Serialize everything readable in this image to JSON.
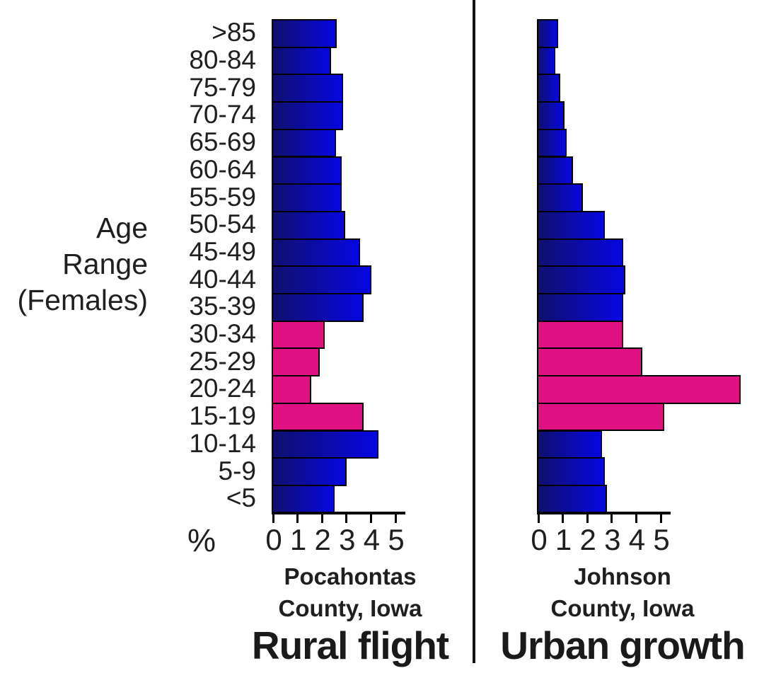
{
  "chart_data": {
    "type": "bar",
    "orientation": "horizontal",
    "title": "",
    "xlabel": "%",
    "ylabel": "Age Range (Females)",
    "ylabel_lines": [
      "Age",
      "Range",
      "(Females)"
    ],
    "categories": [
      ">85",
      "80-84",
      "75-79",
      "70-74",
      "65-69",
      "60-64",
      "55-59",
      "50-54",
      "45-49",
      "40-44",
      "35-39",
      "30-34",
      "25-29",
      "20-24",
      "15-19",
      "10-14",
      "5-9",
      "<5"
    ],
    "xticks": [
      "0",
      "1",
      "2",
      "3",
      "4",
      "5"
    ],
    "xlim": [
      0,
      5
    ],
    "grid": false,
    "legend": "none",
    "series": [
      {
        "name": "Pocahontas County, Iowa",
        "name_lines": [
          "Pocahontas",
          "County, Iowa"
        ],
        "caption": "Rural flight",
        "values": [
          2.55,
          2.3,
          2.8,
          2.8,
          2.5,
          2.75,
          2.75,
          2.9,
          3.5,
          3.95,
          3.65,
          2.05,
          1.85,
          1.5,
          3.65,
          4.25,
          2.95,
          2.45
        ]
      },
      {
        "name": "Johnson County, Iowa",
        "name_lines": [
          "Johnson",
          "County, Iowa"
        ],
        "caption": "Urban growth",
        "values": [
          0.75,
          0.65,
          0.85,
          1.0,
          1.1,
          1.35,
          1.75,
          2.65,
          3.4,
          3.5,
          3.4,
          3.4,
          4.2,
          8.2,
          5.1,
          2.55,
          2.65,
          2.75
        ]
      }
    ],
    "colors": {
      "blue_bar_gradient": [
        "#10106f",
        "#0707e2"
      ],
      "pink_bar": "#e01183",
      "bar_border": "#000000",
      "highlight_categories": [
        "30-34",
        "25-29",
        "20-24",
        "15-19"
      ]
    }
  }
}
